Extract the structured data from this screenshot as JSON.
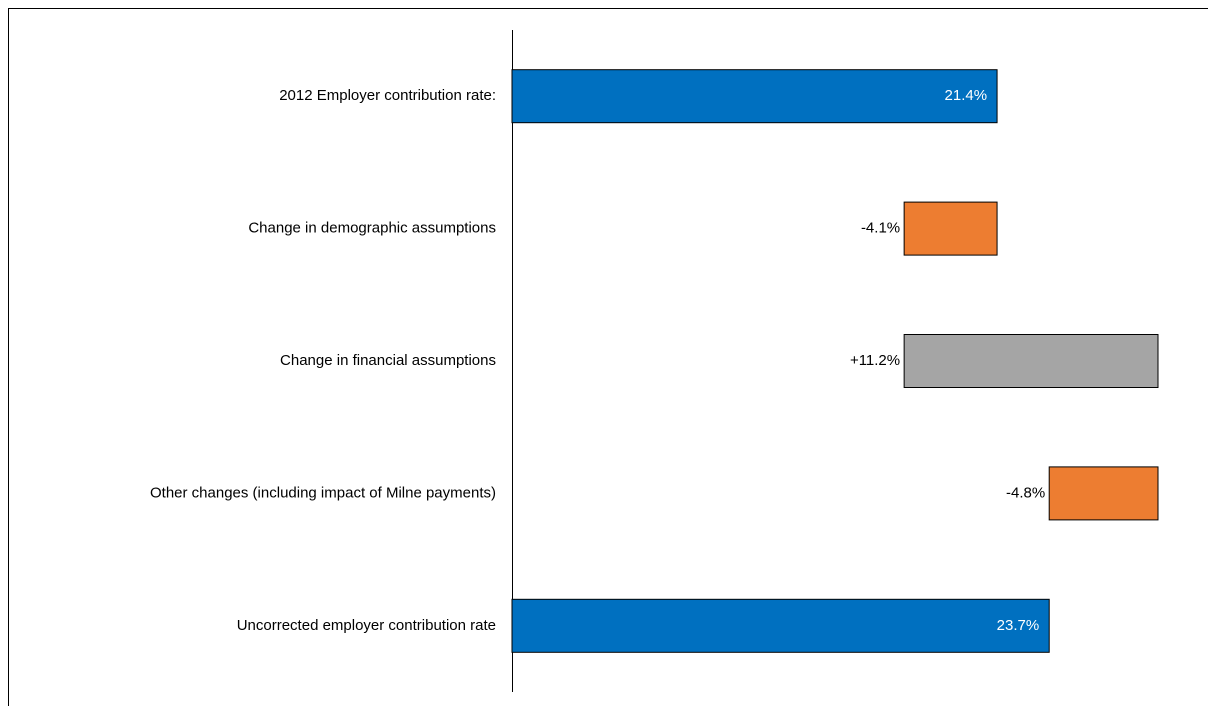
{
  "chart_data": {
    "type": "waterfall",
    "categories": [
      "2012 Employer contribution rate:",
      "Change in demographic assumptions",
      "Change in financial assumptions",
      "Other changes (including impact of Milne payments)",
      "Uncorrected employer contribution rate"
    ],
    "values": [
      21.4,
      -4.1,
      11.2,
      -4.8,
      23.7
    ],
    "value_labels": [
      "21.4%",
      "-4.1%",
      "+11.2%",
      "-4.8%",
      "23.7%"
    ],
    "measure": [
      "absolute",
      "relative",
      "relative",
      "relative",
      "total"
    ],
    "colors": [
      "#0070c0",
      "#ed7d31",
      "#a5a5a5",
      "#ed7d31",
      "#0070c0"
    ]
  }
}
